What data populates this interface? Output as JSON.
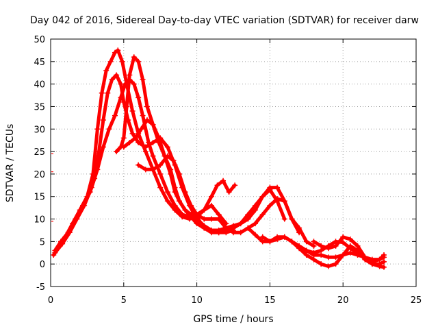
{
  "chart_data": {
    "type": "scatter",
    "title": "Day 042 of 2016, Sidereal Day-to-day VTEC variation (SDTVAR) for receiver darw",
    "xlabel": "GPS time / hours",
    "ylabel": "SDTVAR / TECUs",
    "xlim": [
      0,
      25
    ],
    "ylim": [
      -5,
      50
    ],
    "xticks": [
      0,
      5,
      10,
      15,
      20,
      25
    ],
    "yticks": [
      -5,
      0,
      5,
      10,
      15,
      20,
      25,
      30,
      35,
      40,
      45,
      50
    ],
    "grid": true,
    "legend": "none",
    "marker": "+",
    "color": "#ff0000",
    "series": [
      {
        "name": "trace-1",
        "x": [
          0.2,
          0.6,
          1.0,
          1.5,
          2.0,
          2.5,
          2.9,
          3.2,
          3.5,
          3.8,
          4.1,
          4.4,
          4.6,
          4.9,
          5.2,
          5.6,
          6.0,
          6.5,
          7.0,
          7.5,
          8.0,
          8.5,
          9.0,
          9.5,
          10.0,
          10.5,
          11.0,
          11.4,
          11.8,
          12.2,
          12.6
        ],
        "y": [
          2,
          4,
          6,
          9,
          12,
          15,
          20,
          30,
          38,
          43,
          45,
          47,
          47.5,
          45,
          40,
          34,
          29,
          25,
          21,
          17,
          14,
          12,
          10.5,
          10,
          10.5,
          12,
          15,
          17.5,
          18.5,
          16,
          17.5
        ]
      },
      {
        "name": "trace-2",
        "x": [
          0.3,
          0.7,
          1.2,
          1.7,
          2.2,
          2.7,
          3.0,
          3.3,
          3.6,
          3.9,
          4.2,
          4.5,
          4.8,
          5.0,
          5.3,
          5.6,
          6.0,
          6.5,
          7.0,
          7.5,
          8.0,
          8.5,
          9.0,
          9.5,
          10.0,
          10.5,
          11.0,
          11.5,
          12.0,
          12.5
        ],
        "y": [
          3,
          5,
          7,
          10,
          13,
          16,
          19,
          25,
          32,
          38,
          41,
          42,
          40,
          36,
          32,
          29,
          27,
          26,
          27,
          28,
          26,
          22,
          17,
          13,
          10,
          8.5,
          7.5,
          7,
          7,
          7.5
        ]
      },
      {
        "name": "trace-3",
        "x": [
          0.3,
          0.8,
          1.3,
          1.8,
          2.3,
          2.8,
          3.2,
          3.6,
          4.0,
          4.4,
          4.8,
          5.1,
          5.4,
          5.7,
          6.0,
          6.3,
          6.7,
          7.0,
          7.5,
          8.0,
          8.5,
          9.0,
          9.5,
          10.0,
          10.5,
          11.0,
          11.5,
          12.0
        ],
        "y": [
          2.5,
          4.5,
          7,
          10,
          13,
          17,
          21,
          26,
          30,
          33,
          37,
          40,
          41,
          40,
          37,
          33,
          27,
          24,
          20,
          16,
          13,
          11,
          10.5,
          11,
          12,
          13,
          11,
          9
        ]
      },
      {
        "name": "trace-4",
        "x": [
          4.5,
          4.8,
          5.0,
          5.2,
          5.4,
          5.7,
          6.0,
          6.3,
          6.6,
          7.0,
          7.4,
          7.8,
          8.2,
          8.5,
          8.8,
          9.2,
          9.6,
          10.0,
          10.5,
          11.0,
          11.5,
          12.0,
          12.5,
          13.0,
          13.5,
          14.0,
          14.5,
          15.0,
          15.5,
          16.0
        ],
        "y": [
          25,
          26,
          28,
          35,
          42,
          46,
          45,
          41,
          35,
          31,
          27,
          24,
          21,
          17,
          14,
          12,
          10.5,
          9,
          8,
          7.5,
          7.5,
          8,
          8.5,
          9,
          10,
          12,
          15,
          16.5,
          14,
          10
        ]
      },
      {
        "name": "trace-5",
        "x": [
          5.0,
          5.4,
          5.8,
          6.2,
          6.6,
          7.0,
          7.4,
          7.8,
          8.2,
          8.5,
          8.8,
          9.2,
          9.6,
          10.0,
          10.5,
          11.0,
          11.5,
          12.0,
          12.5,
          13.0,
          13.5,
          14.0,
          14.5,
          15.0,
          15.5,
          16.0,
          16.5,
          17.0
        ],
        "y": [
          26,
          27,
          28,
          30,
          32,
          31,
          28,
          24,
          20,
          16,
          14,
          12,
          11,
          10.5,
          8,
          7,
          7,
          7.5,
          8,
          9,
          11,
          13,
          15,
          17,
          17,
          14,
          10,
          7
        ]
      },
      {
        "name": "trace-6",
        "x": [
          6.0,
          6.5,
          7.0,
          7.5,
          8.0,
          8.4,
          8.8,
          9.2,
          9.6,
          10.0,
          10.5,
          11.0,
          11.5,
          12.0,
          12.5,
          13.0,
          13.5,
          14.0,
          14.5,
          15.0,
          15.5,
          16.0,
          16.5,
          17.0,
          17.5,
          18.0
        ],
        "y": [
          22,
          21,
          21,
          22,
          24,
          23,
          20,
          16,
          13,
          11,
          10,
          10,
          10,
          8,
          7,
          7,
          8,
          9,
          11,
          13,
          14.5,
          14,
          10,
          8,
          5,
          4
        ]
      },
      {
        "name": "trace-7",
        "x": [
          13.5,
          14.0,
          14.5,
          15.0,
          15.5,
          16.0,
          16.5,
          17.0,
          17.5,
          18.0,
          18.5,
          19.0,
          19.5,
          20.0,
          20.5,
          21.0,
          21.5,
          22.0,
          22.5,
          22.8
        ],
        "y": [
          8,
          6.5,
          5,
          5,
          6,
          6,
          5,
          4,
          3,
          2,
          2,
          1.5,
          1.5,
          2,
          2.5,
          2,
          1.5,
          1,
          1,
          2
        ]
      },
      {
        "name": "trace-8",
        "x": [
          14.5,
          15.0,
          15.5,
          16.0,
          16.5,
          17.0,
          17.5,
          18.0,
          18.5,
          19.0,
          19.5,
          20.0,
          20.5,
          21.0,
          21.5,
          22.0,
          22.5,
          22.8
        ],
        "y": [
          6,
          5,
          5.5,
          6,
          5,
          3.5,
          2,
          1,
          0,
          -0.5,
          0,
          2,
          4,
          3,
          1,
          0,
          -0.5,
          -0.7
        ]
      },
      {
        "name": "trace-9",
        "x": [
          17.5,
          18.0,
          18.5,
          19.0,
          19.5,
          20.0,
          20.5,
          21.0,
          21.5,
          22.0,
          22.5,
          22.8
        ],
        "y": [
          3,
          2.5,
          3,
          4,
          5,
          4.8,
          3.5,
          2.5,
          1.5,
          0.5,
          1,
          1.5
        ]
      },
      {
        "name": "trace-10",
        "x": [
          18.0,
          18.5,
          19.0,
          19.5,
          20.0,
          20.5,
          21.0,
          21.5,
          22.0,
          22.5,
          22.8
        ],
        "y": [
          5,
          4,
          3.5,
          4,
          6,
          5.5,
          4,
          1.5,
          0,
          0,
          0.5
        ]
      }
    ]
  }
}
